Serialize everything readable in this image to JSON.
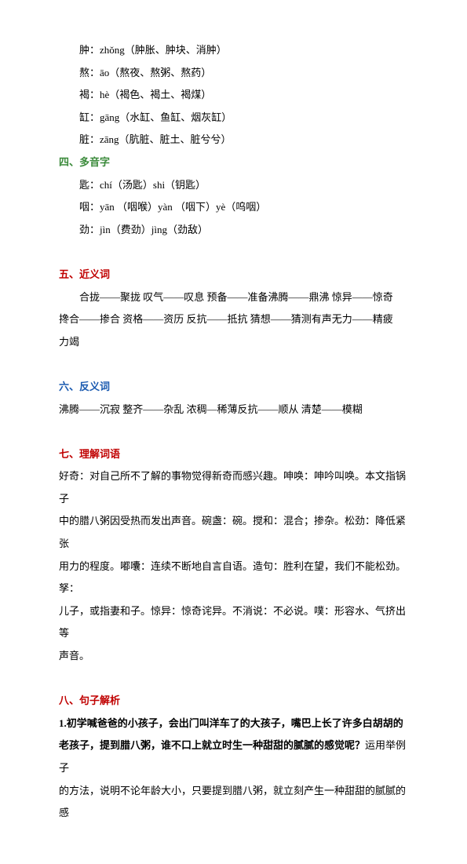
{
  "text_color": "#000000",
  "green_color": "#3a8a3a",
  "red_color": "#c00000",
  "blue_color": "#1a5ab0",
  "font_size": 13,
  "line_height": 2.2,
  "pinyin": {
    "l1": "肿：zhǒng（肿胀、肿块、消肿）",
    "l2": "熬：āo（熬夜、熬粥、熬药）",
    "l3": "褐：hè（褐色、褐土、褐煤）",
    "l4": "缸：gāng（水缸、鱼缸、烟灰缸）",
    "l5": "脏：zāng（肮脏、脏土、脏兮兮）"
  },
  "section4": {
    "title": "四、多音字",
    "l1": "匙：chí（汤匙）shi（钥匙）",
    "l2": "咽：yān （咽喉）yàn （咽下）yè（呜咽）",
    "l3": "劲：jìn（费劲）jìng（劲敌）"
  },
  "section5": {
    "title": "五、近义词",
    "l1": "合拢——聚拢 叹气——叹息 预备——准备沸腾——鼎沸 惊异——惊奇",
    "l2": "搀合——掺合  资格——资历 反抗——抵抗 猜想——猜测有声无力——精疲",
    "l3": "力竭"
  },
  "section6": {
    "title": "六、反义词",
    "l1": "沸腾——沉寂 整齐——杂乱 浓稠—稀薄反抗——顺从 清楚——模糊"
  },
  "section7": {
    "title": "七、理解词语",
    "l1": "好奇：对自己所不了解的事物觉得新奇而感兴趣。呻唤：呻吟叫唤。本文指锅子",
    "l2": "中的腊八粥因受热而发出声音。碗盏：碗。搅和：混合；掺杂。松劲：降低紧张",
    "l3": "用力的程度。嘟囔：连续不断地自言自语。造句：胜利在望，我们不能松劲。孥：",
    "l4": "儿子，或指妻和子。惊异：惊奇诧异。不消说：不必说。噗：形容水、气挤出等",
    "l5": "声音。"
  },
  "section8": {
    "title": "八、句子解析",
    "l1a": "1.初学喊爸爸的小孩子，会出门叫洋车了的大孩子，嘴巴上长了许多白胡胡的",
    "l1b": "老孩子，提到腊八粥，谁不口上就立时生一种甜甜的腻腻的感觉呢？",
    "l1c": "运用举例子",
    "l2": "的方法，说明不论年龄大小，只要提到腊八粥，就立刻产生一种甜甜的腻腻的感"
  }
}
